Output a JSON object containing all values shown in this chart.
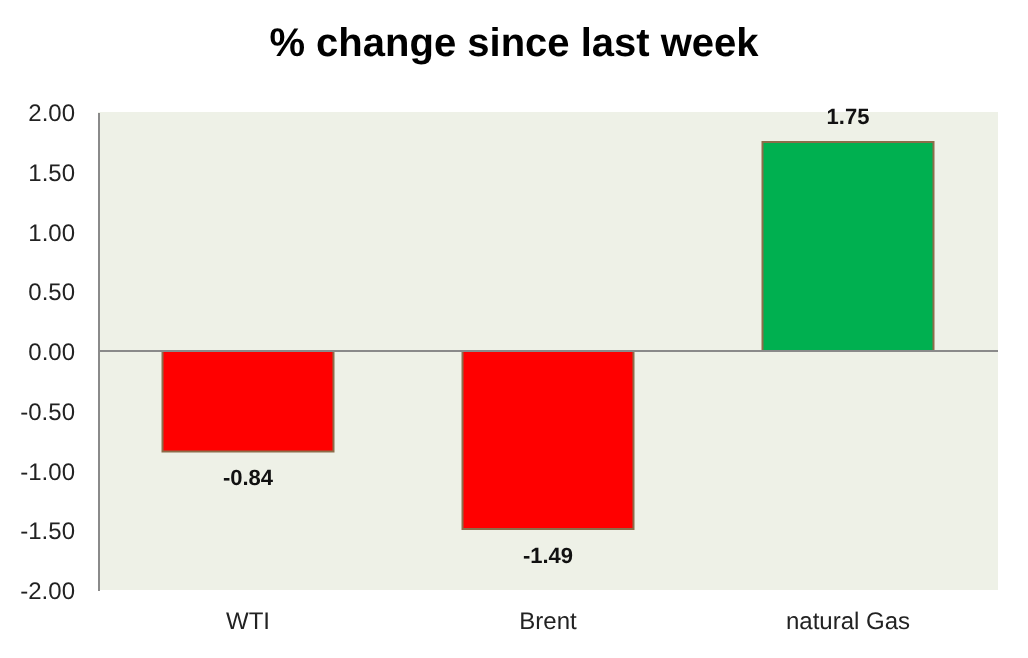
{
  "chart_data": {
    "type": "bar",
    "title": "% change since last week",
    "categories": [
      "WTI",
      "Brent",
      "natural Gas"
    ],
    "values": [
      -0.84,
      -1.49,
      1.75
    ],
    "colors": [
      "#ff0000",
      "#ff0000",
      "#00b050"
    ],
    "ylim": [
      -2,
      2
    ],
    "yticks": [
      {
        "value": 2,
        "label": "2.00"
      },
      {
        "value": 1.5,
        "label": "1.50"
      },
      {
        "value": 1,
        "label": "1.00"
      },
      {
        "value": 0.5,
        "label": "0.50"
      },
      {
        "value": 0,
        "label": "0.00"
      },
      {
        "value": -0.5,
        "label": "-0.50"
      },
      {
        "value": -1,
        "label": "-1.00"
      },
      {
        "value": -1.5,
        "label": "-1.50"
      },
      {
        "value": -2,
        "label": "-2.00"
      }
    ],
    "ref_lines": [
      {
        "axis": "y",
        "value": 0,
        "color": "#8a8a8a"
      }
    ],
    "grid": false,
    "data_labels": true
  }
}
